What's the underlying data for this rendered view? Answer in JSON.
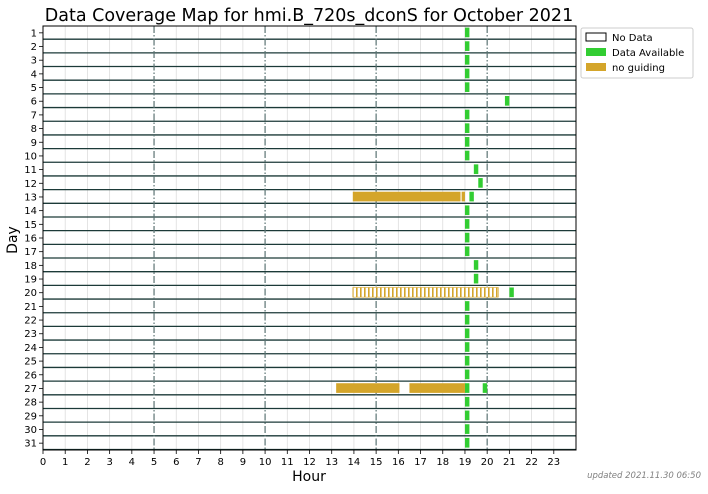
{
  "chart_data": {
    "type": "bar",
    "title": "Data Coverage Map for hmi.B_720s_dconS for October 2021",
    "xlabel": "Hour",
    "ylabel": "Day",
    "xlim": [
      0,
      24
    ],
    "ylim": [
      1,
      31
    ],
    "x_ticks": [
      "0",
      "1",
      "2",
      "3",
      "4",
      "5",
      "6",
      "7",
      "8",
      "9",
      "10",
      "11",
      "12",
      "13",
      "14",
      "15",
      "16",
      "17",
      "18",
      "19",
      "20",
      "21",
      "22",
      "23"
    ],
    "days": [
      "1",
      "2",
      "3",
      "4",
      "5",
      "6",
      "7",
      "8",
      "9",
      "10",
      "11",
      "12",
      "13",
      "14",
      "15",
      "16",
      "17",
      "18",
      "19",
      "20",
      "21",
      "22",
      "23",
      "24",
      "25",
      "26",
      "27",
      "28",
      "29",
      "30",
      "31"
    ],
    "major_gridlines_hours": [
      5,
      10,
      15,
      20
    ],
    "legend": {
      "placement": "outside-right-top",
      "entries": [
        {
          "key": "nodata",
          "label": "No Data",
          "color": "#ffffff"
        },
        {
          "key": "available",
          "label": "Data Available",
          "color": "#32cd32"
        },
        {
          "key": "noguiding",
          "label": "no guiding",
          "color": "#d4a52a"
        }
      ]
    },
    "series": [
      {
        "name": "Data Available",
        "color": "#32cd32",
        "intervals": [
          {
            "day": 1,
            "start": 19.0,
            "end": 19.2
          },
          {
            "day": 2,
            "start": 19.0,
            "end": 19.2
          },
          {
            "day": 3,
            "start": 19.0,
            "end": 19.2
          },
          {
            "day": 4,
            "start": 19.0,
            "end": 19.2
          },
          {
            "day": 5,
            "start": 19.0,
            "end": 19.2
          },
          {
            "day": 6,
            "start": 20.8,
            "end": 21.0
          },
          {
            "day": 7,
            "start": 19.0,
            "end": 19.2
          },
          {
            "day": 8,
            "start": 19.0,
            "end": 19.2
          },
          {
            "day": 9,
            "start": 19.0,
            "end": 19.2
          },
          {
            "day": 10,
            "start": 19.0,
            "end": 19.2
          },
          {
            "day": 11,
            "start": 19.4,
            "end": 19.6
          },
          {
            "day": 12,
            "start": 19.6,
            "end": 19.8
          },
          {
            "day": 13,
            "start": 19.2,
            "end": 19.4
          },
          {
            "day": 14,
            "start": 19.0,
            "end": 19.2
          },
          {
            "day": 15,
            "start": 19.0,
            "end": 19.2
          },
          {
            "day": 16,
            "start": 19.0,
            "end": 19.2
          },
          {
            "day": 17,
            "start": 19.0,
            "end": 19.2
          },
          {
            "day": 18,
            "start": 19.4,
            "end": 19.6
          },
          {
            "day": 19,
            "start": 19.4,
            "end": 19.6
          },
          {
            "day": 20,
            "start": 21.0,
            "end": 21.2
          },
          {
            "day": 21,
            "start": 19.0,
            "end": 19.2
          },
          {
            "day": 22,
            "start": 19.0,
            "end": 19.2
          },
          {
            "day": 23,
            "start": 19.0,
            "end": 19.2
          },
          {
            "day": 24,
            "start": 19.0,
            "end": 19.2
          },
          {
            "day": 25,
            "start": 19.0,
            "end": 19.2
          },
          {
            "day": 26,
            "start": 19.0,
            "end": 19.2
          },
          {
            "day": 27,
            "start": 19.0,
            "end": 19.2
          },
          {
            "day": 27,
            "start": 19.8,
            "end": 20.0
          },
          {
            "day": 28,
            "start": 19.0,
            "end": 19.2
          },
          {
            "day": 29,
            "start": 19.0,
            "end": 19.2
          },
          {
            "day": 30,
            "start": 19.0,
            "end": 19.2
          },
          {
            "day": 31,
            "start": 19.0,
            "end": 19.2
          }
        ]
      },
      {
        "name": "no guiding",
        "color": "#d4a52a",
        "intervals": [
          {
            "day": 13,
            "start": 13.95,
            "end": 18.8
          },
          {
            "day": 13,
            "start": 18.85,
            "end": 19.0
          },
          {
            "day": 27,
            "start": 13.2,
            "end": 16.05
          },
          {
            "day": 27,
            "start": 16.5,
            "end": 19.0
          }
        ]
      },
      {
        "name": "no guiding",
        "color": "#d4a52a",
        "style": "striped",
        "intervals": [
          {
            "day": 20,
            "start": 13.95,
            "end": 20.5
          }
        ]
      }
    ]
  },
  "footer": {
    "updated": "updated 2021.11.30 06:50"
  }
}
